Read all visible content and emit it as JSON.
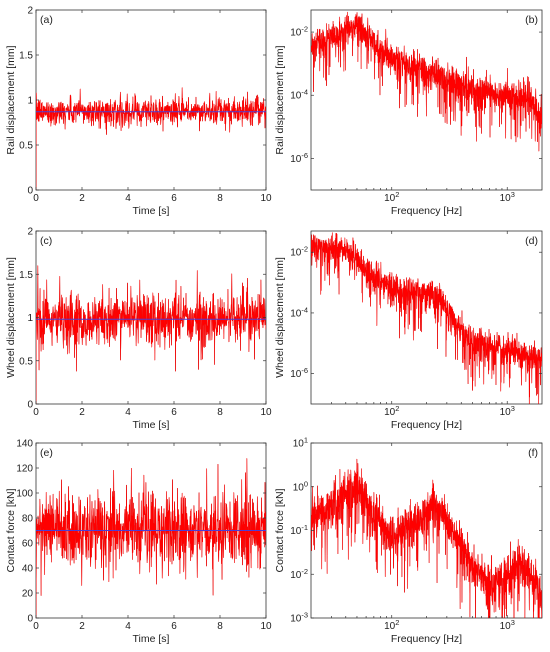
{
  "colors": {
    "signal": "#ff0000",
    "signal_dark": "#a60000",
    "mean": "#4b3cd6",
    "axis": "#333333"
  },
  "chart_data": [
    {
      "type": "line",
      "panel": "(a)",
      "xlabel": "Time [s]",
      "ylabel": "Rail displacement [mm]",
      "xlim": [
        0,
        10
      ],
      "ylim": [
        0,
        2
      ],
      "xticks": [
        "0",
        "2",
        "4",
        "6",
        "8",
        "10"
      ],
      "yticks": [
        "0",
        "0.5",
        "1",
        "1.5",
        "2"
      ],
      "xscale": "linear",
      "yscale": "linear",
      "signal": {
        "mean": 0.87,
        "typical_band": [
          0.72,
          1.02
        ],
        "peak_range": [
          0.6,
          1.15
        ],
        "start_value": 0
      },
      "mean_line": 0.87
    },
    {
      "type": "line",
      "panel": "(b)",
      "xlabel": "Frequency [Hz]",
      "ylabel": "Rail displacement [mm]",
      "xlim": [
        20,
        2000
      ],
      "ylim": [
        1e-07,
        0.05
      ],
      "xticks": [
        "10^2",
        "10^3"
      ],
      "yticks": [
        "10^-6",
        "10^-4",
        "10^-2"
      ],
      "xscale": "log",
      "yscale": "log",
      "spectrum": {
        "freq": [
          20,
          30,
          40,
          50,
          60,
          80,
          100,
          150,
          200,
          300,
          500,
          700,
          1000,
          1500,
          2000
        ],
        "amplitude": [
          0.0035,
          0.007,
          0.012,
          0.018,
          0.009,
          0.003,
          0.0016,
          0.0009,
          0.00055,
          0.00032,
          0.00017,
          0.00012,
          9e-05,
          0.0001,
          2e-05
        ]
      }
    },
    {
      "type": "line",
      "panel": "(c)",
      "xlabel": "Time [s]",
      "ylabel": "Wheel displacement [mm]",
      "xlim": [
        0,
        10
      ],
      "ylim": [
        0,
        2
      ],
      "xticks": [
        "0",
        "2",
        "4",
        "6",
        "8",
        "10"
      ],
      "yticks": [
        "0",
        "0.5",
        "1",
        "1.5",
        "2"
      ],
      "xscale": "linear",
      "yscale": "linear",
      "signal": {
        "mean": 0.98,
        "typical_band": [
          0.7,
          1.3
        ],
        "peak_range": [
          0.38,
          1.6
        ],
        "start_value": 0
      },
      "mean_line": 0.98
    },
    {
      "type": "line",
      "panel": "(d)",
      "xlabel": "Frequency [Hz]",
      "ylabel": "Wheel displacement [mm]",
      "xlim": [
        20,
        2000
      ],
      "ylim": [
        1e-07,
        0.05
      ],
      "xticks": [
        "10^2",
        "10^3"
      ],
      "yticks": [
        "10^-6",
        "10^-4",
        "10^-2"
      ],
      "xscale": "log",
      "yscale": "log",
      "spectrum": {
        "freq": [
          20,
          30,
          40,
          50,
          60,
          80,
          100,
          150,
          200,
          250,
          300,
          400,
          500,
          700,
          1000,
          1500,
          2000
        ],
        "amplitude": [
          0.015,
          0.014,
          0.012,
          0.006,
          0.0025,
          0.0011,
          0.0007,
          0.00045,
          0.0004,
          0.00035,
          0.00012,
          3e-05,
          1.2e-05,
          8e-06,
          7e-06,
          4e-06,
          2.5e-06
        ]
      }
    },
    {
      "type": "line",
      "panel": "(e)",
      "xlabel": "Time [s]",
      "ylabel": "Contact force [kN]",
      "xlim": [
        0,
        10
      ],
      "ylim": [
        0,
        140
      ],
      "xticks": [
        "0",
        "2",
        "4",
        "6",
        "8",
        "10"
      ],
      "yticks": [
        "0",
        "20",
        "40",
        "60",
        "80",
        "100",
        "120",
        "140"
      ],
      "xscale": "linear",
      "yscale": "linear",
      "signal": {
        "mean": 70,
        "typical_band": [
          40,
          100
        ],
        "peak_range": [
          18,
          128
        ],
        "start_value": 0
      },
      "mean_line": 70
    },
    {
      "type": "line",
      "panel": "(f)",
      "xlabel": "Frequency [Hz]",
      "ylabel": "Contact force [kN]",
      "xlim": [
        20,
        2000
      ],
      "ylim": [
        0.001,
        10
      ],
      "xticks": [
        "10^2",
        "10^3"
      ],
      "yticks": [
        "10^-3",
        "10^-2",
        "10^-1",
        "10^0",
        "10^1"
      ],
      "xscale": "log",
      "yscale": "log",
      "spectrum": {
        "freq": [
          20,
          30,
          40,
          50,
          60,
          80,
          100,
          150,
          200,
          230,
          250,
          300,
          400,
          500,
          700,
          900,
          1100,
          1300,
          1500,
          2000
        ],
        "amplitude": [
          0.25,
          0.4,
          0.8,
          1.1,
          0.5,
          0.15,
          0.08,
          0.13,
          0.3,
          0.45,
          0.4,
          0.15,
          0.05,
          0.015,
          0.006,
          0.006,
          0.012,
          0.02,
          0.015,
          0.003
        ]
      }
    }
  ]
}
